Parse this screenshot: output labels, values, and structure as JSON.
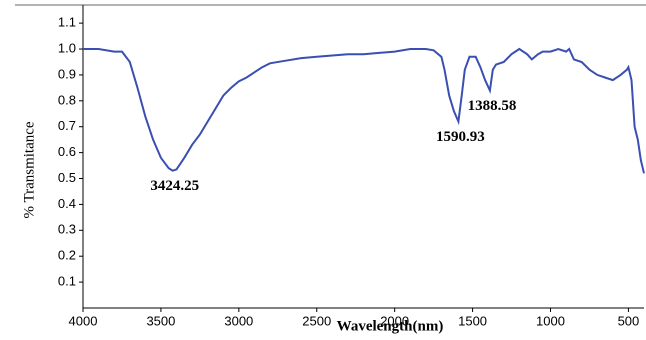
{
  "chart_data": {
    "type": "line",
    "x_label": "Wavelength(nm)",
    "y_label": "% Transmitance",
    "xlim": [
      4000,
      400
    ],
    "ylim": [
      0,
      1.17
    ],
    "xticks": [
      4000,
      3500,
      3000,
      2500,
      2000,
      1500,
      1000,
      500
    ],
    "yticks": [
      0.1,
      0.2,
      0.3,
      0.4,
      0.5,
      0.6,
      0.7,
      0.8,
      0.9,
      {
        "value": 1,
        "label": "1.0"
      },
      1.1
    ],
    "series": [
      {
        "color": "#3a4fb0",
        "x": [
          4000,
          3900,
          3800,
          3750,
          3700,
          3650,
          3600,
          3550,
          3500,
          3450,
          3424.25,
          3400,
          3350,
          3300,
          3250,
          3200,
          3150,
          3100,
          3050,
          3000,
          2950,
          2900,
          2850,
          2800,
          2700,
          2600,
          2500,
          2400,
          2300,
          2200,
          2100,
          2000,
          1900,
          1800,
          1750,
          1700,
          1680,
          1650,
          1620,
          1590.93,
          1570,
          1550,
          1520,
          1480,
          1450,
          1420,
          1388.58,
          1370,
          1350,
          1300,
          1250,
          1200,
          1150,
          1120,
          1080,
          1050,
          1000,
          950,
          900,
          880,
          850,
          800,
          750,
          700,
          650,
          600,
          550,
          510,
          500,
          480,
          460,
          440,
          420,
          400
        ],
        "values": [
          1.0,
          1.0,
          0.99,
          0.99,
          0.95,
          0.85,
          0.74,
          0.65,
          0.58,
          0.54,
          0.53,
          0.535,
          0.58,
          0.63,
          0.67,
          0.72,
          0.77,
          0.82,
          0.85,
          0.875,
          0.89,
          0.91,
          0.93,
          0.945,
          0.955,
          0.965,
          0.97,
          0.975,
          0.98,
          0.98,
          0.985,
          0.99,
          1.0,
          1.0,
          0.995,
          0.97,
          0.92,
          0.82,
          0.76,
          0.72,
          0.82,
          0.92,
          0.97,
          0.97,
          0.93,
          0.88,
          0.84,
          0.92,
          0.94,
          0.95,
          0.98,
          1.0,
          0.98,
          0.96,
          0.98,
          0.99,
          0.99,
          1.0,
          0.99,
          1.0,
          0.96,
          0.95,
          0.92,
          0.9,
          0.89,
          0.88,
          0.9,
          0.92,
          0.93,
          0.88,
          0.7,
          0.65,
          0.57,
          0.52
        ]
      }
    ],
    "annotations": [
      {
        "x": 3424.25,
        "y": 0.53,
        "label": "3424.25"
      },
      {
        "x": 1590.93,
        "y": 0.72,
        "label": "1590.93"
      },
      {
        "x": 1388.58,
        "y": 0.84,
        "label": "1388.58"
      }
    ]
  }
}
